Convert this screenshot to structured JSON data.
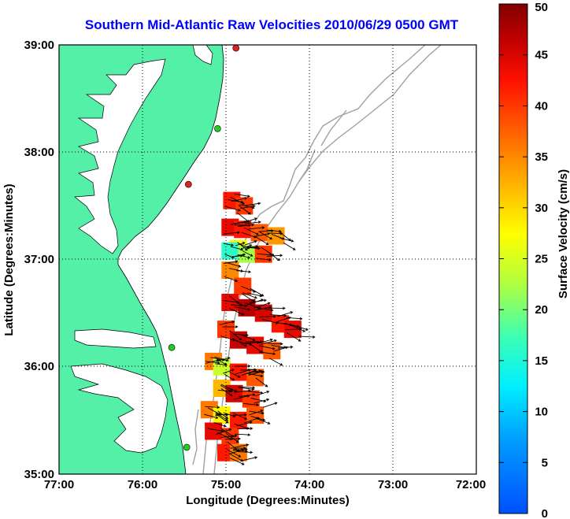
{
  "title": "Southern Mid-Atlantic Raw Velocities 2010/06/29 0500 GMT",
  "x_axis": {
    "label": "Longitude (Degrees:Minutes)",
    "ticks": [
      "77:00",
      "76:00",
      "75:00",
      "74:00",
      "73:00",
      "72:00"
    ]
  },
  "y_axis": {
    "label": "Latitude (Degrees:Minutes)",
    "ticks": [
      "39:00",
      "38:00",
      "37:00",
      "36:00",
      "35:00"
    ]
  },
  "colorbar": {
    "label": "Surface Velocity (cm/s)",
    "ticks": [
      "50",
      "45",
      "40",
      "35",
      "30",
      "25",
      "20",
      "15",
      "10",
      "5",
      "0"
    ],
    "min": 0,
    "max": 50
  },
  "colors": {
    "land": "#55f0a8",
    "title": "#0000ff",
    "contour": "#a0a0a0",
    "station_green": "#22cc22",
    "station_red": "#e02020"
  },
  "map_extent": {
    "lon": [
      -77,
      -72
    ],
    "lat": [
      35,
      39
    ]
  },
  "grid": true,
  "stations": [
    {
      "lon": -74.88,
      "lat": 38.97,
      "status": "red"
    },
    {
      "lon": -75.1,
      "lat": 38.22,
      "status": "green"
    },
    {
      "lon": -75.45,
      "lat": 37.7,
      "status": "red"
    },
    {
      "lon": -75.65,
      "lat": 36.18,
      "status": "green"
    },
    {
      "lon": -75.47,
      "lat": 35.25,
      "status": "green"
    }
  ],
  "velocity_field": [
    {
      "lon": -74.93,
      "lat": 37.55,
      "speed": 42
    },
    {
      "lon": -74.78,
      "lat": 37.5,
      "speed": 40
    },
    {
      "lon": -74.95,
      "lat": 37.3,
      "speed": 44
    },
    {
      "lon": -74.8,
      "lat": 37.28,
      "speed": 42
    },
    {
      "lon": -74.6,
      "lat": 37.25,
      "speed": 38
    },
    {
      "lon": -74.4,
      "lat": 37.22,
      "speed": 34
    },
    {
      "lon": -74.85,
      "lat": 37.1,
      "speed": 28
    },
    {
      "lon": -74.95,
      "lat": 37.08,
      "speed": 16
    },
    {
      "lon": -74.75,
      "lat": 37.05,
      "speed": 22
    },
    {
      "lon": -74.55,
      "lat": 37.05,
      "speed": 40
    },
    {
      "lon": -74.95,
      "lat": 36.9,
      "speed": 35
    },
    {
      "lon": -74.8,
      "lat": 36.75,
      "speed": 40
    },
    {
      "lon": -74.95,
      "lat": 36.6,
      "speed": 44
    },
    {
      "lon": -74.75,
      "lat": 36.55,
      "speed": 47
    },
    {
      "lon": -74.55,
      "lat": 36.5,
      "speed": 45
    },
    {
      "lon": -74.35,
      "lat": 36.4,
      "speed": 42
    },
    {
      "lon": -74.2,
      "lat": 36.35,
      "speed": 44
    },
    {
      "lon": -75.0,
      "lat": 36.35,
      "speed": 40
    },
    {
      "lon": -74.85,
      "lat": 36.25,
      "speed": 46
    },
    {
      "lon": -74.65,
      "lat": 36.2,
      "speed": 44
    },
    {
      "lon": -74.45,
      "lat": 36.15,
      "speed": 38
    },
    {
      "lon": -75.15,
      "lat": 36.05,
      "speed": 36
    },
    {
      "lon": -75.05,
      "lat": 36.0,
      "speed": 24
    },
    {
      "lon": -74.85,
      "lat": 35.95,
      "speed": 42
    },
    {
      "lon": -74.65,
      "lat": 35.9,
      "speed": 38
    },
    {
      "lon": -75.05,
      "lat": 35.8,
      "speed": 32
    },
    {
      "lon": -74.9,
      "lat": 35.75,
      "speed": 45
    },
    {
      "lon": -74.7,
      "lat": 35.7,
      "speed": 40
    },
    {
      "lon": -75.2,
      "lat": 35.6,
      "speed": 36
    },
    {
      "lon": -75.05,
      "lat": 35.55,
      "speed": 28
    },
    {
      "lon": -74.85,
      "lat": 35.5,
      "speed": 42
    },
    {
      "lon": -74.65,
      "lat": 35.55,
      "speed": 38
    },
    {
      "lon": -75.15,
      "lat": 35.4,
      "speed": 44
    },
    {
      "lon": -74.95,
      "lat": 35.35,
      "speed": 40
    },
    {
      "lon": -75.0,
      "lat": 35.2,
      "speed": 42
    },
    {
      "lon": -74.85,
      "lat": 35.2,
      "speed": 36
    }
  ]
}
